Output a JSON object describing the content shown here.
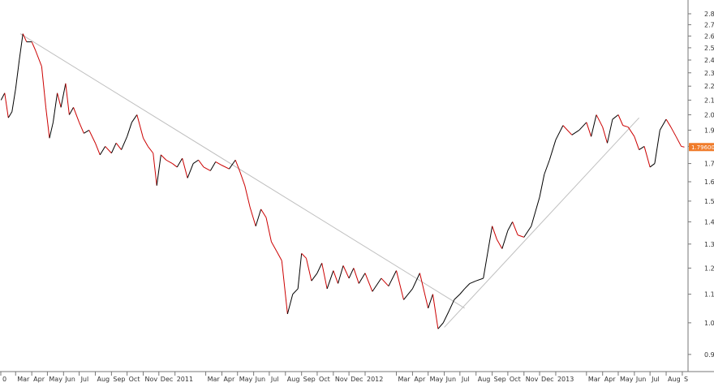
{
  "colors": {
    "background": "#ffffff",
    "axis": "#777777",
    "grid": "#dddddd",
    "price_line_up": "#000000",
    "price_line_down": "#cc0000",
    "trendline": "#bfbfbf",
    "price_tag": "#f07b2a"
  },
  "chart_data": {
    "type": "line",
    "title": "",
    "xlabel": "",
    "ylabel": "",
    "y_scale": "log",
    "ylim": [
      0.85,
      2.9
    ],
    "y_ticks": [
      "0.9",
      "1.0",
      "1.1",
      "1.2",
      "1.3",
      "1.4",
      "1.5",
      "1.6",
      "1.7",
      "1.8",
      "1.9",
      "2.0",
      "2.1",
      "2.2",
      "2.3",
      "2.4",
      "2.5",
      "2.6",
      "2.7",
      "2.8"
    ],
    "x_ticks": [
      "0",
      "Mar",
      "Apr",
      "May",
      "Jun",
      "Jul",
      "Aug",
      "Sep",
      "Oct",
      "Nov",
      "Dec",
      "2011",
      "Mar",
      "Apr",
      "May",
      "Jun",
      "Jul",
      "Aug",
      "Sep",
      "Oct",
      "Nov",
      "Dec",
      "2012",
      "Mar",
      "Apr",
      "May",
      "Jun",
      "Jul",
      "Aug",
      "Sep",
      "Oct",
      "Nov",
      "Dec",
      "2013",
      "Mar",
      "Apr",
      "May",
      "Jun",
      "Jul",
      "Aug",
      "S"
    ],
    "grid": false,
    "last_price_label": "1.79600",
    "last_price": 1.796,
    "series": [
      {
        "x": [
          "2010-02-01",
          "2010-02-08",
          "2010-02-15",
          "2010-02-22",
          "2010-03-01",
          "2010-03-08",
          "2010-03-15",
          "2010-03-22",
          "2010-04-01",
          "2010-04-08",
          "2010-04-20",
          "2010-04-28",
          "2010-05-05",
          "2010-05-12",
          "2010-05-20",
          "2010-05-27",
          "2010-06-05",
          "2010-06-12",
          "2010-06-20",
          "2010-07-01",
          "2010-07-10",
          "2010-07-20",
          "2010-08-01",
          "2010-08-10",
          "2010-08-20",
          "2010-09-01",
          "2010-09-10",
          "2010-09-20",
          "2010-10-01",
          "2010-10-10",
          "2010-10-20",
          "2010-11-01",
          "2010-11-10",
          "2010-11-20",
          "2010-11-27",
          "2010-12-05",
          "2010-12-15",
          "2010-12-27",
          "2011-01-05",
          "2011-01-15",
          "2011-01-25",
          "2011-02-05",
          "2011-02-15",
          "2011-02-25",
          "2011-03-10",
          "2011-03-20",
          "2011-04-01",
          "2011-04-15",
          "2011-04-27",
          "2011-05-05",
          "2011-05-15",
          "2011-05-25",
          "2011-06-05",
          "2011-06-15",
          "2011-06-25",
          "2011-07-05",
          "2011-07-15",
          "2011-07-25",
          "2011-08-05",
          "2011-08-15",
          "2011-08-25",
          "2011-09-01",
          "2011-09-10",
          "2011-09-20",
          "2011-10-01",
          "2011-10-10",
          "2011-10-20",
          "2011-11-01",
          "2011-11-10",
          "2011-11-20",
          "2011-12-01",
          "2011-12-10",
          "2011-12-20",
          "2012-01-01",
          "2012-01-15",
          "2012-02-01",
          "2012-02-15",
          "2012-03-01",
          "2012-03-15",
          "2012-04-01",
          "2012-04-15",
          "2012-05-01",
          "2012-05-10",
          "2012-05-20",
          "2012-05-30",
          "2012-06-10",
          "2012-06-20",
          "2012-07-01",
          "2012-07-10",
          "2012-07-20",
          "2012-08-01",
          "2012-08-15",
          "2012-09-01",
          "2012-09-10",
          "2012-09-20",
          "2012-10-01",
          "2012-10-10",
          "2012-10-20",
          "2012-11-01",
          "2012-11-15",
          "2012-12-01",
          "2012-12-10",
          "2012-12-20",
          "2013-01-01",
          "2013-01-15",
          "2013-02-01",
          "2013-02-15",
          "2013-03-01",
          "2013-03-10",
          "2013-03-20",
          "2013-04-01",
          "2013-04-10",
          "2013-04-20",
          "2013-05-01",
          "2013-05-10",
          "2013-05-20",
          "2013-06-01",
          "2013-06-10",
          "2013-06-20",
          "2013-07-01",
          "2013-07-10",
          "2013-07-20",
          "2013-08-01",
          "2013-08-10",
          "2013-08-20",
          "2013-08-30",
          "2013-09-05"
        ],
        "values": [
          2.1,
          2.15,
          1.98,
          2.02,
          2.18,
          2.4,
          2.62,
          2.55,
          2.55,
          2.48,
          2.35,
          2.05,
          1.85,
          1.95,
          2.15,
          2.05,
          2.22,
          2.0,
          2.05,
          1.95,
          1.88,
          1.9,
          1.82,
          1.75,
          1.8,
          1.76,
          1.82,
          1.78,
          1.86,
          1.95,
          2.0,
          1.85,
          1.8,
          1.76,
          1.58,
          1.75,
          1.72,
          1.7,
          1.68,
          1.73,
          1.62,
          1.7,
          1.72,
          1.68,
          1.66,
          1.71,
          1.69,
          1.67,
          1.72,
          1.66,
          1.58,
          1.47,
          1.38,
          1.46,
          1.42,
          1.31,
          1.27,
          1.23,
          1.03,
          1.1,
          1.12,
          1.26,
          1.24,
          1.15,
          1.18,
          1.22,
          1.12,
          1.19,
          1.14,
          1.21,
          1.16,
          1.2,
          1.14,
          1.18,
          1.11,
          1.16,
          1.13,
          1.19,
          1.08,
          1.12,
          1.18,
          1.05,
          1.1,
          0.98,
          1.0,
          1.04,
          1.08,
          1.1,
          1.12,
          1.14,
          1.15,
          1.16,
          1.38,
          1.32,
          1.28,
          1.36,
          1.4,
          1.34,
          1.33,
          1.38,
          1.52,
          1.64,
          1.72,
          1.84,
          1.93,
          1.87,
          1.9,
          1.95,
          1.86,
          2.0,
          1.92,
          1.82,
          1.97,
          2.0,
          1.93,
          1.92,
          1.86,
          1.78,
          1.8,
          1.68,
          1.7,
          1.9,
          1.97,
          1.92,
          1.86,
          1.8,
          1.796
        ]
      }
    ],
    "trendlines": [
      {
        "x": [
          "2010-03-10",
          "2012-07-10"
        ],
        "values": [
          2.62,
          1.05
        ]
      },
      {
        "x": [
          "2012-06-01",
          "2013-06-10"
        ],
        "values": [
          0.985,
          1.98
        ]
      }
    ]
  }
}
